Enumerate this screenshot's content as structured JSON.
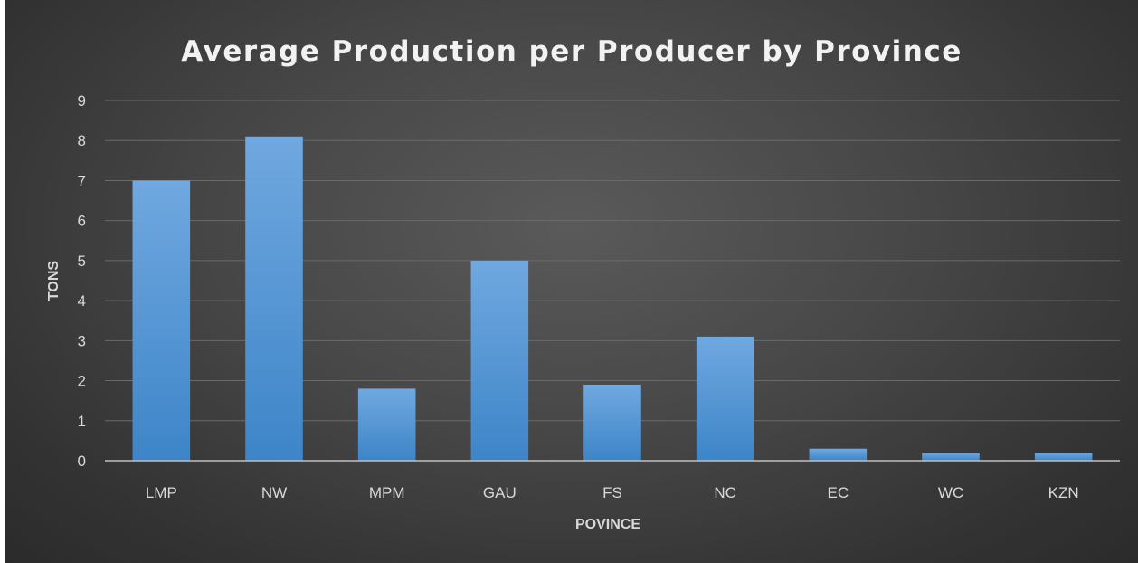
{
  "chart_data": {
    "type": "bar",
    "title": "Average Production per Producer by Province",
    "xlabel": "POVINCE",
    "ylabel": "TONS",
    "categories": [
      "LMP",
      "NW",
      "MPM",
      "GAU",
      "FS",
      "NC",
      "EC",
      "WC",
      "KZN"
    ],
    "values": [
      7.0,
      8.1,
      1.8,
      5.0,
      1.9,
      3.1,
      0.3,
      0.2,
      0.2
    ],
    "ylim": [
      0,
      9
    ],
    "yticks": [
      "0",
      "1",
      "2",
      "3",
      "4",
      "5",
      "6",
      "7",
      "8",
      "9"
    ],
    "grid": true,
    "legend": "none",
    "colors": {
      "bar_top": "#70a8e0",
      "bar_bottom": "#3d85c8",
      "text": "#d9d9d9",
      "title": "#f2f2f2"
    }
  }
}
